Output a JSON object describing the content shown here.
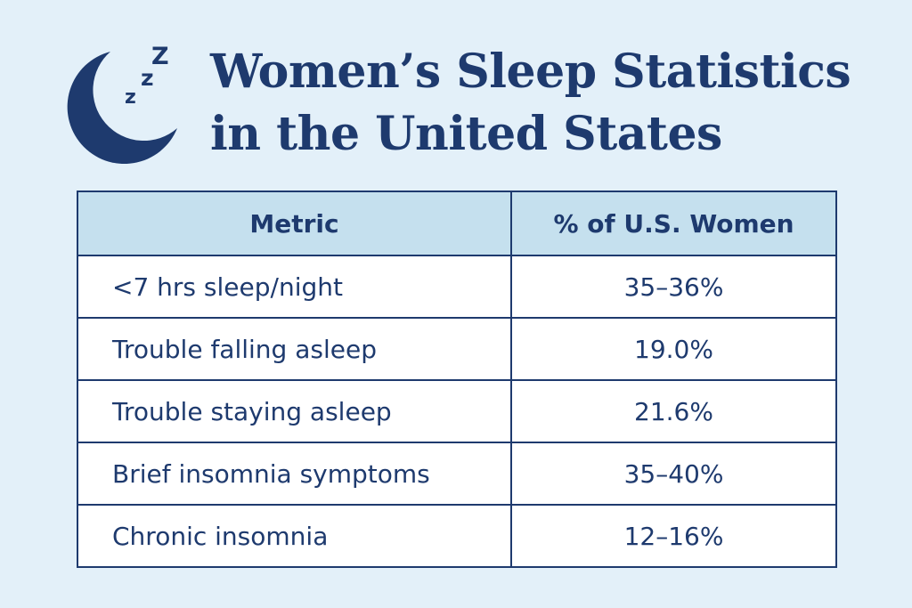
{
  "title_lines": [
    "Women’s Sleep Statistics",
    "in the United States"
  ],
  "logo": {
    "icon": "moon-zzz-icon",
    "letters": [
      "z",
      "z",
      "Z"
    ]
  },
  "colors": {
    "background": "#e3f0f9",
    "accent": "#1e3a6e",
    "header_fill": "#c5e0ee",
    "row_fill": "#ffffff"
  },
  "chart_data": {
    "type": "table",
    "title": "Women’s Sleep Statistics in the United States",
    "columns": [
      "Metric",
      "% of U.S. Women"
    ],
    "rows": [
      {
        "metric": "<7 hrs sleep/night",
        "value": "35–36%"
      },
      {
        "metric": "Trouble falling asleep",
        "value": "19.0%"
      },
      {
        "metric": "Trouble staying asleep",
        "value": "21.6%"
      },
      {
        "metric": "Brief insomnia symptoms",
        "value": "35–40%"
      },
      {
        "metric": "Chronic insomnia",
        "value": "12–16%"
      }
    ]
  }
}
